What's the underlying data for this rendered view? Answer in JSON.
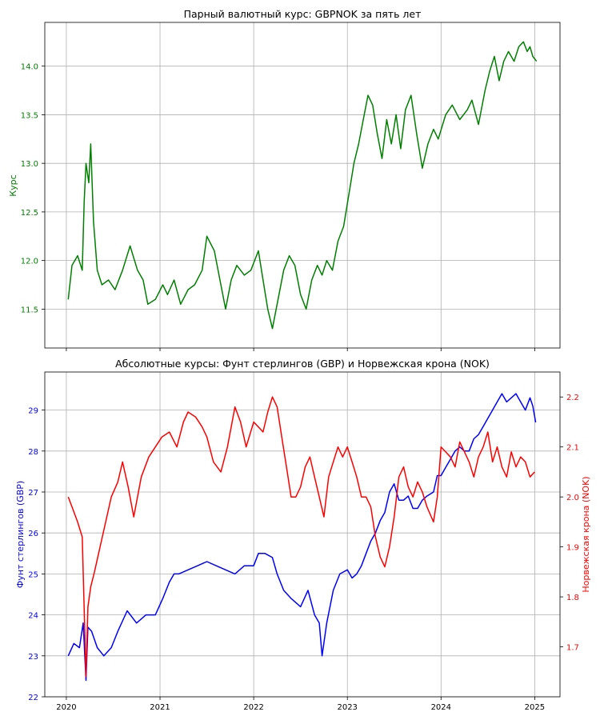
{
  "chart_data": [
    {
      "type": "line",
      "title": "Парный валютный курс: GBPNOK за пять лет",
      "xlabel": "",
      "ylabel": "Курс",
      "ylabel_color": "#008000",
      "ytick_color": "#008000",
      "x_ticks": [
        "2020",
        "2021",
        "2022",
        "2023",
        "2024",
        "2025"
      ],
      "x_ticks_visible": false,
      "xlim": [
        2019.77,
        2025.27
      ],
      "ylim": [
        11.1,
        14.45
      ],
      "y_ticks": [
        "11.5",
        "12.0",
        "12.5",
        "13.0",
        "13.5",
        "14.0"
      ],
      "grid": true,
      "series": [
        {
          "name": "GBPNOK",
          "color": "#008000",
          "x": [
            2020.02,
            2020.06,
            2020.12,
            2020.17,
            2020.19,
            2020.21,
            2020.24,
            2020.26,
            2020.29,
            2020.33,
            2020.38,
            2020.45,
            2020.52,
            2020.6,
            2020.68,
            2020.76,
            2020.82,
            2020.87,
            2020.95,
            2021.03,
            2021.08,
            2021.15,
            2021.22,
            2021.3,
            2021.37,
            2021.45,
            2021.5,
            2021.58,
            2021.65,
            2021.7,
            2021.76,
            2021.82,
            2021.9,
            2021.97,
            2022.05,
            2022.1,
            2022.15,
            2022.2,
            2022.25,
            2022.32,
            2022.38,
            2022.44,
            2022.5,
            2022.56,
            2022.62,
            2022.68,
            2022.73,
            2022.78,
            2022.84,
            2022.9,
            2022.96,
            2023.02,
            2023.07,
            2023.12,
            2023.17,
            2023.22,
            2023.27,
            2023.32,
            2023.37,
            2023.42,
            2023.47,
            2023.52,
            2023.57,
            2023.62,
            2023.68,
            2023.74,
            2023.8,
            2023.86,
            2023.92,
            2023.97,
            2024.05,
            2024.12,
            2024.2,
            2024.28,
            2024.33,
            2024.4,
            2024.47,
            2024.52,
            2024.57,
            2024.62,
            2024.67,
            2024.72,
            2024.78,
            2024.83,
            2024.88,
            2024.92,
            2024.95,
            2024.98,
            2025.02
          ],
          "y": [
            11.6,
            11.95,
            12.05,
            11.9,
            12.6,
            13.0,
            12.8,
            13.2,
            12.4,
            11.9,
            11.75,
            11.8,
            11.7,
            11.9,
            12.15,
            11.9,
            11.8,
            11.55,
            11.6,
            11.75,
            11.65,
            11.8,
            11.55,
            11.7,
            11.75,
            11.9,
            12.25,
            12.1,
            11.75,
            11.5,
            11.8,
            11.95,
            11.85,
            11.9,
            12.1,
            11.8,
            11.5,
            11.3,
            11.55,
            11.9,
            12.05,
            11.95,
            11.65,
            11.5,
            11.8,
            11.95,
            11.85,
            12.0,
            11.9,
            12.2,
            12.35,
            12.7,
            13.0,
            13.2,
            13.45,
            13.7,
            13.6,
            13.3,
            13.05,
            13.45,
            13.2,
            13.5,
            13.15,
            13.55,
            13.7,
            13.3,
            12.95,
            13.2,
            13.35,
            13.25,
            13.5,
            13.6,
            13.45,
            13.55,
            13.65,
            13.4,
            13.75,
            13.95,
            14.1,
            13.85,
            14.05,
            14.15,
            14.05,
            14.2,
            14.25,
            14.15,
            14.2,
            14.1,
            14.05
          ]
        }
      ]
    },
    {
      "type": "line",
      "title": "Абсолютные курсы: Фунт стерлингов (GBP) и Норвежская крона (NOK)",
      "xlabel": "",
      "x_ticks": [
        "2020",
        "2021",
        "2022",
        "2023",
        "2024",
        "2025"
      ],
      "xlim": [
        2019.77,
        2025.27
      ],
      "grid": true,
      "left_axis": {
        "label": "Фунт стерлингов (GBP)",
        "color": "#0000ff",
        "ylim": [
          22,
          29.93
        ],
        "ticks": [
          "22",
          "23",
          "24",
          "25",
          "26",
          "27",
          "28",
          "29"
        ]
      },
      "right_axis": {
        "label": "Норвежская крона (NOK)",
        "color": "#ff0000",
        "ylim": [
          1.6,
          2.25
        ],
        "ticks": [
          "1.7",
          "1.8",
          "1.9",
          "2.0",
          "2.1",
          "2.2"
        ]
      },
      "series": [
        {
          "name": "GBP",
          "axis": "left",
          "color": "#0000ff",
          "x": [
            2020.02,
            2020.08,
            2020.14,
            2020.18,
            2020.21,
            2020.23,
            2020.27,
            2020.33,
            2020.4,
            2020.48,
            2020.55,
            2020.65,
            2020.75,
            2020.85,
            2020.95,
            2021.03,
            2021.1,
            2021.15,
            2021.2,
            2021.3,
            2021.4,
            2021.5,
            2021.6,
            2021.7,
            2021.8,
            2021.9,
            2022.0,
            2022.05,
            2022.12,
            2022.2,
            2022.25,
            2022.32,
            2022.4,
            2022.5,
            2022.58,
            2022.65,
            2022.7,
            2022.73,
            2022.78,
            2022.85,
            2022.92,
            2023.0,
            2023.05,
            2023.1,
            2023.15,
            2023.2,
            2023.25,
            2023.3,
            2023.35,
            2023.4,
            2023.45,
            2023.5,
            2023.55,
            2023.6,
            2023.65,
            2023.7,
            2023.75,
            2023.8,
            2023.85,
            2023.92,
            2023.96,
            2024.0,
            2024.05,
            2024.1,
            2024.15,
            2024.2,
            2024.25,
            2024.3,
            2024.35,
            2024.4,
            2024.45,
            2024.5,
            2024.55,
            2024.6,
            2024.65,
            2024.7,
            2024.75,
            2024.8,
            2024.85,
            2024.9,
            2024.95,
            2024.98,
            2025.01
          ],
          "y": [
            23.0,
            23.3,
            23.2,
            23.8,
            22.4,
            23.7,
            23.6,
            23.2,
            23.0,
            23.2,
            23.6,
            24.1,
            23.8,
            24.0,
            24.0,
            24.4,
            24.8,
            25.0,
            25.0,
            25.1,
            25.2,
            25.3,
            25.2,
            25.1,
            25.0,
            25.2,
            25.2,
            25.5,
            25.5,
            25.4,
            25.0,
            24.6,
            24.4,
            24.2,
            24.6,
            24.0,
            23.8,
            23.0,
            23.8,
            24.6,
            25.0,
            25.1,
            24.9,
            25.0,
            25.2,
            25.5,
            25.8,
            26.0,
            26.3,
            26.5,
            27.0,
            27.2,
            26.8,
            26.8,
            26.9,
            26.6,
            26.6,
            26.8,
            26.9,
            27.0,
            27.4,
            27.4,
            27.6,
            27.8,
            28.0,
            28.1,
            28.0,
            28.0,
            28.3,
            28.4,
            28.6,
            28.8,
            29.0,
            29.2,
            29.4,
            29.2,
            29.3,
            29.4,
            29.2,
            29.0,
            29.3,
            29.1,
            28.7
          ]
        },
        {
          "name": "NOK",
          "axis": "right",
          "color": "#ff0000",
          "x": [
            2020.02,
            2020.06,
            2020.12,
            2020.17,
            2020.21,
            2020.23,
            2020.26,
            2020.3,
            2020.36,
            2020.42,
            2020.48,
            2020.55,
            2020.6,
            2020.66,
            2020.72,
            2020.8,
            2020.88,
            2020.95,
            2021.02,
            2021.1,
            2021.18,
            2021.25,
            2021.3,
            2021.38,
            2021.45,
            2021.5,
            2021.57,
            2021.65,
            2021.72,
            2021.8,
            2021.86,
            2021.92,
            2022.0,
            2022.05,
            2022.1,
            2022.15,
            2022.2,
            2022.25,
            2022.3,
            2022.35,
            2022.4,
            2022.45,
            2022.5,
            2022.55,
            2022.6,
            2022.65,
            2022.7,
            2022.75,
            2022.8,
            2022.85,
            2022.9,
            2022.95,
            2023.0,
            2023.05,
            2023.1,
            2023.15,
            2023.2,
            2023.25,
            2023.3,
            2023.35,
            2023.4,
            2023.45,
            2023.5,
            2023.55,
            2023.6,
            2023.65,
            2023.7,
            2023.75,
            2023.8,
            2023.85,
            2023.92,
            2023.96,
            2024.0,
            2024.05,
            2024.1,
            2024.15,
            2024.2,
            2024.25,
            2024.3,
            2024.35,
            2024.4,
            2024.45,
            2024.5,
            2024.55,
            2024.6,
            2024.65,
            2024.7,
            2024.75,
            2024.8,
            2024.85,
            2024.9,
            2024.95,
            2025.0
          ],
          "y": [
            2.0,
            1.98,
            1.95,
            1.92,
            1.64,
            1.78,
            1.82,
            1.85,
            1.9,
            1.95,
            2.0,
            2.03,
            2.07,
            2.02,
            1.96,
            2.04,
            2.08,
            2.1,
            2.12,
            2.13,
            2.1,
            2.15,
            2.17,
            2.16,
            2.14,
            2.12,
            2.07,
            2.05,
            2.1,
            2.18,
            2.15,
            2.1,
            2.15,
            2.14,
            2.13,
            2.17,
            2.2,
            2.18,
            2.12,
            2.06,
            2.0,
            2.0,
            2.02,
            2.06,
            2.08,
            2.04,
            2.0,
            1.96,
            2.04,
            2.07,
            2.1,
            2.08,
            2.1,
            2.07,
            2.04,
            2.0,
            2.0,
            1.98,
            1.92,
            1.88,
            1.86,
            1.9,
            1.96,
            2.04,
            2.06,
            2.02,
            2.0,
            2.03,
            2.01,
            1.98,
            1.95,
            2.0,
            2.1,
            2.09,
            2.08,
            2.06,
            2.11,
            2.09,
            2.07,
            2.04,
            2.08,
            2.1,
            2.13,
            2.07,
            2.1,
            2.06,
            2.04,
            2.09,
            2.06,
            2.08,
            2.07,
            2.04,
            2.05
          ]
        }
      ]
    }
  ]
}
